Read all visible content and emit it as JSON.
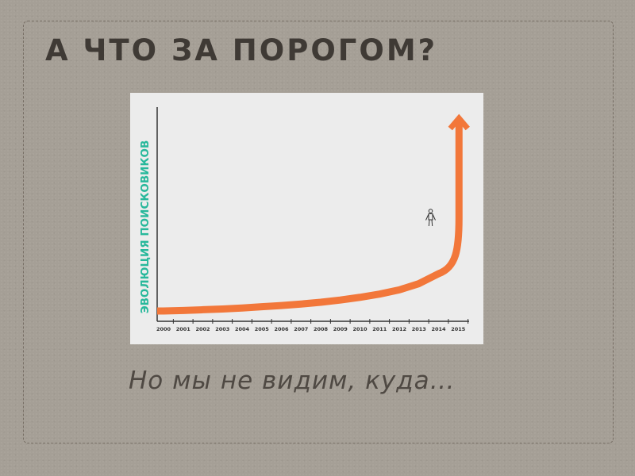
{
  "slide": {
    "title": "А ЧТО ЗА ПОРОГОМ?",
    "subtitle": "Но мы не видим, куда…"
  },
  "colors": {
    "curve": "#f2773a",
    "ylabel": "#27b89b",
    "axis": "#333333",
    "background": "#ececec"
  },
  "icons": {
    "marker": "person-icon"
  },
  "chart_data": {
    "type": "line",
    "title": "",
    "xlabel": "",
    "ylabel": "ЭВОЛЮЦИЯ ПОИСКОВИКОВ",
    "x": [
      "2000",
      "2001",
      "2002",
      "2003",
      "2004",
      "2005",
      "2006",
      "2007",
      "2008",
      "2009",
      "2010",
      "2011",
      "2012",
      "2013",
      "2014",
      "2015"
    ],
    "series": [
      {
        "values": [
          1,
          1.2,
          1.5,
          1.8,
          2.2,
          2.7,
          3.2,
          3.8,
          4.5,
          5.4,
          6.5,
          7.8,
          9.5,
          12,
          16,
          100
        ]
      }
    ],
    "annotations": [
      {
        "type": "icon",
        "icon": "person-icon",
        "x": "2014"
      }
    ],
    "arrow_end": true,
    "grid": false
  }
}
